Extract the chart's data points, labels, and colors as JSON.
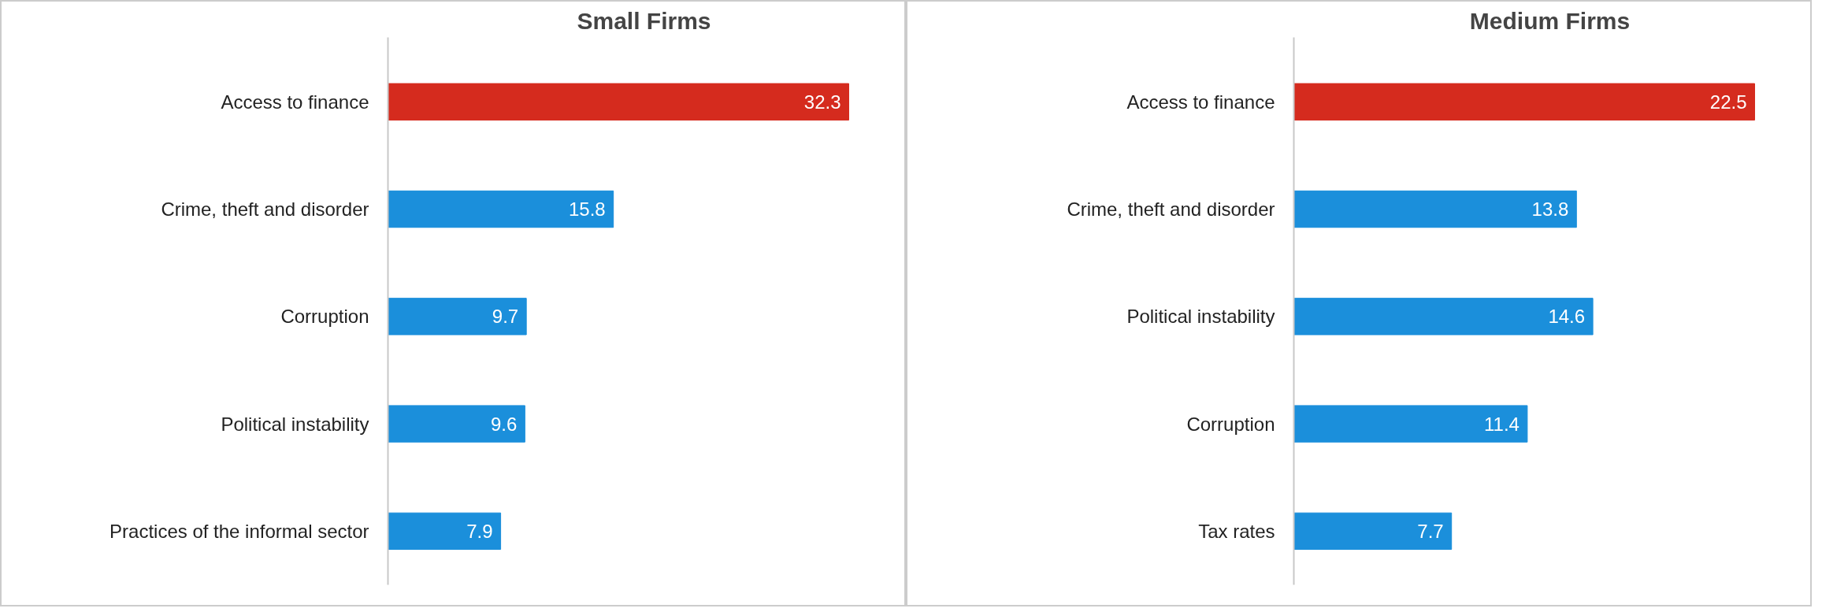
{
  "chart_data": [
    {
      "type": "bar",
      "title": "Small Firms",
      "orientation": "horizontal",
      "data_labels": true,
      "grid": false,
      "categories": [
        "Access to finance",
        "Crime, theft and disorder",
        "Corruption",
        "Political instability",
        "Practices of the informal sector"
      ],
      "values": [
        32.3,
        15.8,
        9.7,
        9.6,
        7.9
      ],
      "colors": [
        "#d52b1e",
        "#1b8fdb",
        "#1b8fdb",
        "#1b8fdb",
        "#1b8fdb"
      ]
    },
    {
      "type": "bar",
      "title": "Medium Firms",
      "orientation": "horizontal",
      "data_labels": true,
      "grid": false,
      "categories": [
        "Access to finance",
        "Crime, theft and disorder",
        "Political instability",
        "Corruption",
        "Tax rates"
      ],
      "values": [
        22.5,
        13.8,
        14.6,
        11.4,
        7.7
      ],
      "colors": [
        "#d52b1e",
        "#1b8fdb",
        "#1b8fdb",
        "#1b8fdb",
        "#1b8fdb"
      ]
    }
  ]
}
